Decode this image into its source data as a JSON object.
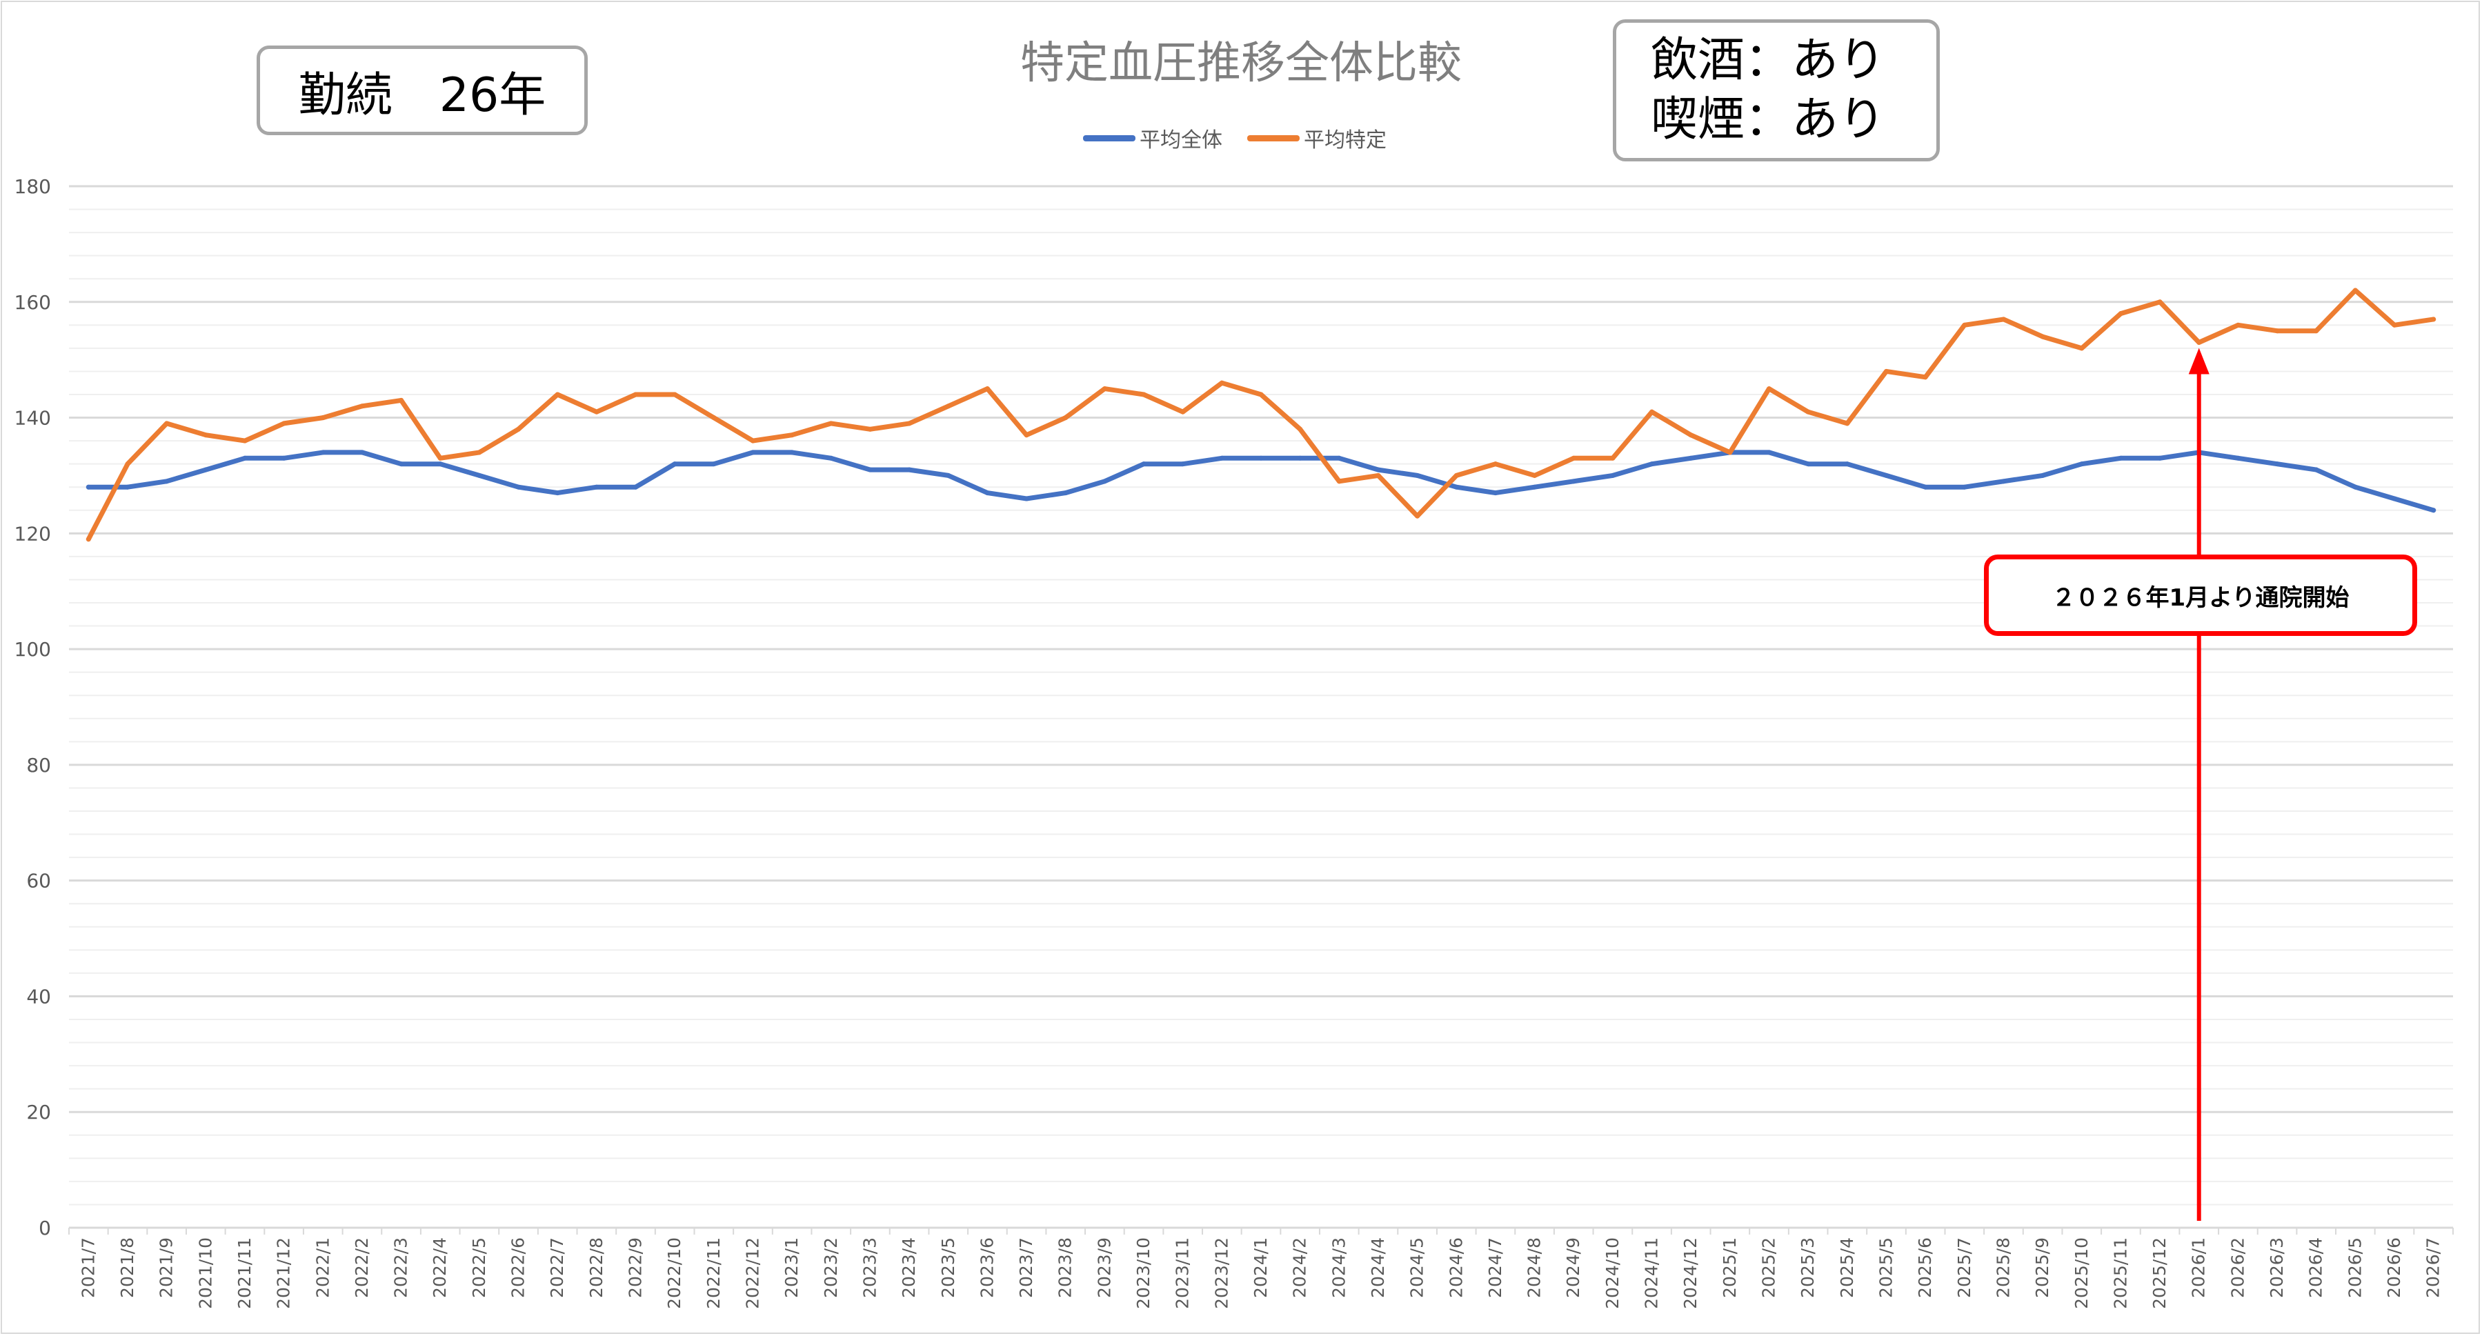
{
  "chart_data": {
    "type": "line",
    "title": "特定血圧推移全体比較",
    "ylim": [
      0,
      180
    ],
    "y_ticks": [
      "0",
      "20",
      "40",
      "60",
      "80",
      "100",
      "120",
      "140",
      "160",
      "180"
    ],
    "grid": true,
    "legend_position": "top",
    "categories": [
      "2021/7",
      "2021/8",
      "2021/9",
      "2021/10",
      "2021/11",
      "2021/12",
      "2022/1",
      "2022/2",
      "2022/3",
      "2022/4",
      "2022/5",
      "2022/6",
      "2022/7",
      "2022/8",
      "2022/9",
      "2022/10",
      "2022/11",
      "2022/12",
      "2023/1",
      "2023/2",
      "2023/3",
      "2023/4",
      "2023/5",
      "2023/6",
      "2023/7",
      "2023/8",
      "2023/9",
      "2023/10",
      "2023/11",
      "2023/12",
      "2024/1",
      "2024/2",
      "2024/3",
      "2024/4",
      "2024/5",
      "2024/6",
      "2024/7",
      "2024/8",
      "2024/9",
      "2024/10",
      "2024/11",
      "2024/12",
      "2025/1",
      "2025/2",
      "2025/3",
      "2025/4",
      "2025/5",
      "2025/6",
      "2025/7",
      "2025/8",
      "2025/9",
      "2025/10",
      "2025/11",
      "2025/12",
      "2026/1",
      "2026/2",
      "2026/3",
      "2026/4",
      "2026/5",
      "2026/6",
      "2026/7"
    ],
    "series": [
      {
        "name": "平均全体",
        "color": "#4472c4",
        "values": [
          128,
          128,
          129,
          131,
          133,
          133,
          134,
          134,
          132,
          132,
          130,
          128,
          127,
          128,
          128,
          132,
          132,
          134,
          134,
          133,
          131,
          131,
          130,
          127,
          126,
          127,
          129,
          132,
          132,
          133,
          133,
          133,
          133,
          131,
          130,
          128,
          127,
          128,
          129,
          130,
          132,
          133,
          134,
          134,
          132,
          132,
          130,
          128,
          128,
          129,
          130,
          132,
          133,
          133,
          134,
          133,
          132,
          131,
          128,
          126,
          124
        ]
      },
      {
        "name": "平均特定",
        "color": "#ed7d31",
        "values": [
          119,
          132,
          139,
          137,
          136,
          139,
          140,
          142,
          143,
          133,
          134,
          138,
          144,
          141,
          144,
          144,
          140,
          136,
          137,
          139,
          138,
          139,
          142,
          145,
          137,
          140,
          145,
          144,
          141,
          146,
          144,
          138,
          129,
          130,
          123,
          130,
          132,
          130,
          133,
          133,
          141,
          137,
          134,
          145,
          141,
          139,
          148,
          147,
          156,
          157,
          154,
          152,
          158,
          160,
          153,
          156,
          155,
          155,
          162,
          156,
          157
        ]
      }
    ]
  },
  "annotations": {
    "tenure": "勤続　26年",
    "drinking": "飲酒：あり",
    "smoking": "喫煙：あり",
    "note": "２０２６年1月より通院開始",
    "arrow_category": "2026/1",
    "arrow_color": "#ff0000"
  }
}
